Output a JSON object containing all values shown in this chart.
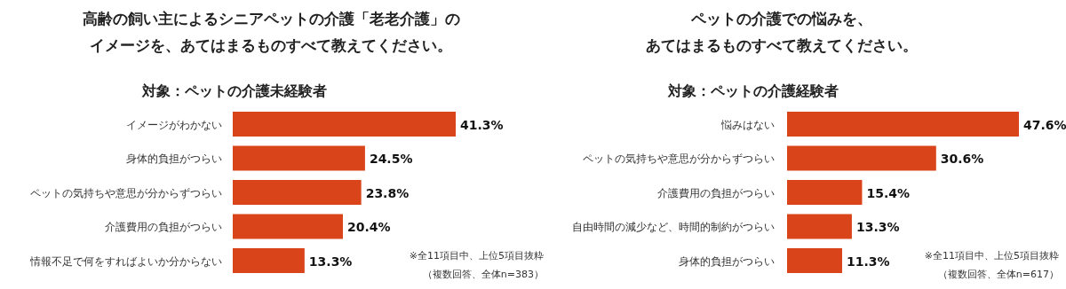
{
  "chart_data": [
    {
      "type": "bar",
      "orientation": "horizontal",
      "title": "高齢の飼い主によるシニアペットの介護「老老介護」のイメージを、あてはまるものすべて教えてください。",
      "subtitle": "対象：ペットの介護未経験者",
      "categories": [
        "イメージがわかない",
        "身体的負担がつらい",
        "ペットの気持ちや意思が分からずつらい",
        "介護費用の負担がつらい",
        "情報不足で何をすればよいか分からない"
      ],
      "values": [
        41.3,
        24.5,
        23.8,
        20.4,
        13.3
      ],
      "value_labels": [
        "41.3%",
        "24.5%",
        "23.8%",
        "20.4%",
        "13.3%"
      ],
      "color": "#d9441a",
      "annotations": [
        "※全11項目中、上位5項目抜粋",
        "（複数回答、全体n=383）"
      ]
    },
    {
      "type": "bar",
      "orientation": "horizontal",
      "title": "ペットの介護での悩みを、あてはまるものすべて教えてください。",
      "subtitle": "対象：ペットの介護経験者",
      "categories": [
        "悩みはない",
        "ペットの気持ちや意思が分からずつらい",
        "介護費用の負担がつらい",
        "自由時間の減少など、時間的制約がつらい",
        "身体的負担がつらい"
      ],
      "values": [
        47.6,
        30.6,
        15.4,
        13.3,
        11.3
      ],
      "value_labels": [
        "47.6%",
        "30.6%",
        "15.4%",
        "13.3%",
        "11.3%"
      ],
      "color": "#d9441a",
      "annotations": [
        "※全11項目中、上位5項目抜粋",
        "（複数回答、全体n=617）"
      ]
    }
  ]
}
